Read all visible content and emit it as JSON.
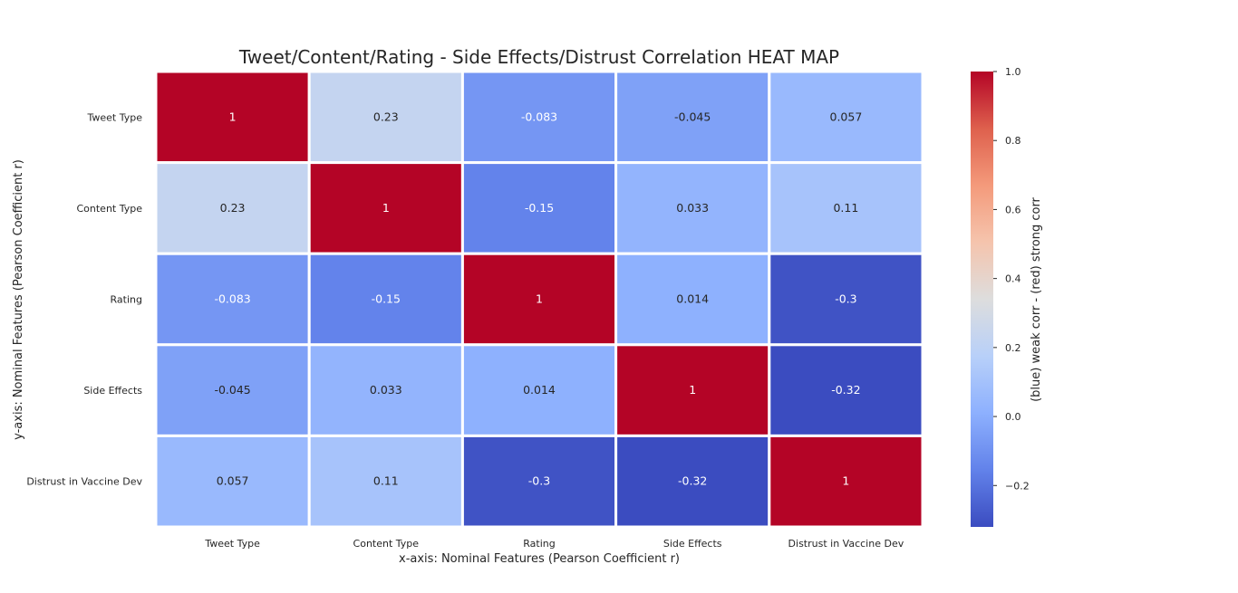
{
  "chart_data": {
    "type": "heatmap",
    "title": "Tweet/Content/Rating - Side Effects/Distrust Correlation HEAT MAP",
    "xlabel": "x-axis: Nominal Features (Pearson Coefficient r)",
    "ylabel": "y-axis: Nominal Features (Pearson Coefficient r)",
    "x_categories": [
      "Tweet Type",
      "Content Type",
      "Rating",
      "Side Effects",
      "Distrust in Vaccine Dev"
    ],
    "y_categories": [
      "Tweet Type",
      "Content Type",
      "Rating",
      "Side Effects",
      "Distrust in Vaccine Dev"
    ],
    "values": [
      [
        1,
        0.23,
        -0.083,
        -0.045,
        0.057
      ],
      [
        0.23,
        1,
        -0.15,
        0.033,
        0.11
      ],
      [
        -0.083,
        -0.15,
        1,
        0.014,
        -0.3
      ],
      [
        -0.045,
        0.033,
        0.014,
        1,
        -0.32
      ],
      [
        0.057,
        0.11,
        -0.3,
        -0.32,
        1
      ]
    ],
    "cell_labels": [
      [
        "1",
        "0.23",
        "-0.083",
        "-0.045",
        "0.057"
      ],
      [
        "0.23",
        "1",
        "-0.15",
        "0.033",
        "0.11"
      ],
      [
        "-0.083",
        "-0.15",
        "1",
        "0.014",
        "-0.3"
      ],
      [
        "-0.045",
        "0.033",
        "0.014",
        "1",
        "-0.32"
      ],
      [
        "0.057",
        "0.11",
        "-0.3",
        "-0.32",
        "1"
      ]
    ],
    "colormap": "coolwarm",
    "vmin": -0.32,
    "vmax": 1,
    "colorbar": {
      "label": "(blue) weak corr - (red) strong corr",
      "ticks": [
        -0.2,
        0.0,
        0.2,
        0.4,
        0.6,
        0.8,
        1.0
      ],
      "tick_labels": [
        "−0.2",
        "0.0",
        "0.2",
        "0.4",
        "0.6",
        "0.8",
        "1.0"
      ]
    }
  }
}
